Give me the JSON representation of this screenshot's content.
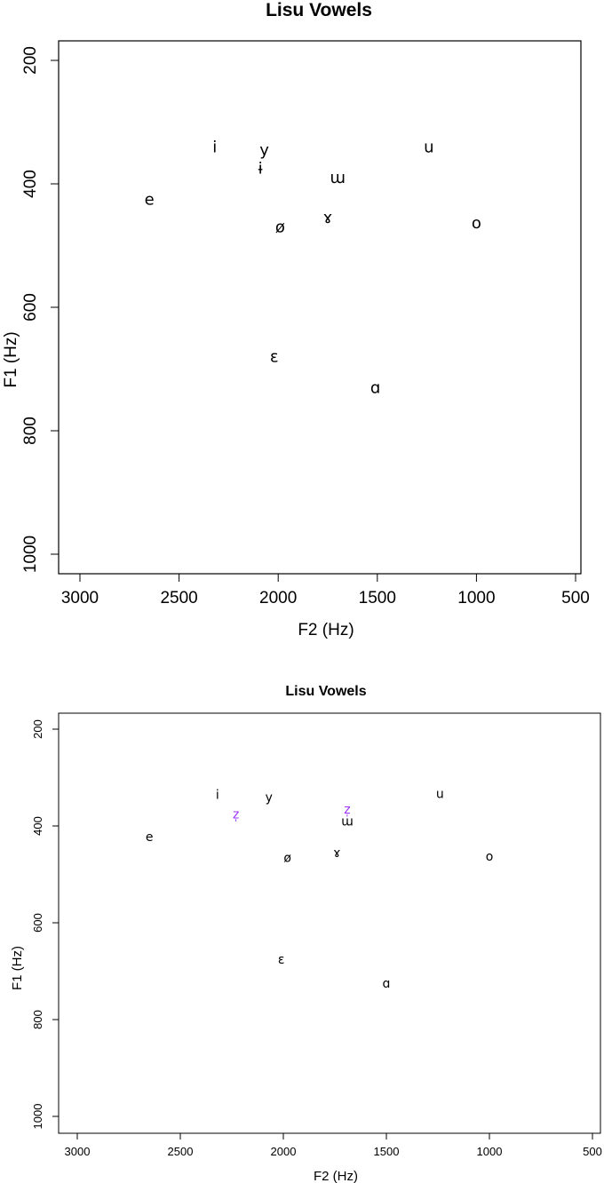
{
  "chart_data": [
    {
      "type": "scatter",
      "title": "Lisu Vowels",
      "xlabel": "F2 (Hz)",
      "ylabel": "F1 (Hz)",
      "xlim": [
        3000,
        500
      ],
      "ylim": [
        1000,
        200
      ],
      "x_reversed": true,
      "y_reversed": true,
      "xticks": [
        3000,
        2500,
        2000,
        1500,
        1000,
        500
      ],
      "yticks": [
        200,
        400,
        600,
        800,
        1000
      ],
      "grid": false,
      "points": [
        {
          "label": "i",
          "x": 2320,
          "y": 340,
          "color": "#000000"
        },
        {
          "label": "y",
          "x": 2070,
          "y": 345,
          "color": "#000000"
        },
        {
          "label": "ɨ",
          "x": 2090,
          "y": 375,
          "color": "#000000"
        },
        {
          "label": "u",
          "x": 1240,
          "y": 340,
          "color": "#000000"
        },
        {
          "label": "ɯ",
          "x": 1700,
          "y": 390,
          "color": "#000000"
        },
        {
          "label": "e",
          "x": 2650,
          "y": 425,
          "color": "#000000"
        },
        {
          "label": "ɤ",
          "x": 1750,
          "y": 455,
          "color": "#000000"
        },
        {
          "label": "ø",
          "x": 1990,
          "y": 470,
          "color": "#000000"
        },
        {
          "label": "o",
          "x": 1000,
          "y": 463,
          "color": "#000000"
        },
        {
          "label": "ɛ",
          "x": 2020,
          "y": 680,
          "color": "#000000"
        },
        {
          "label": "ɑ",
          "x": 1510,
          "y": 730,
          "color": "#000000"
        }
      ]
    },
    {
      "type": "scatter",
      "title": "Lisu Vowels",
      "xlabel": "F2 (Hz)",
      "ylabel": "F1 (Hz)",
      "xlim": [
        3000,
        500
      ],
      "ylim": [
        1000,
        200
      ],
      "x_reversed": true,
      "y_reversed": true,
      "xticks": [
        3000,
        2500,
        2000,
        1500,
        1000,
        500
      ],
      "yticks": [
        200,
        400,
        600,
        800,
        1000
      ],
      "grid": false,
      "points": [
        {
          "label": "i",
          "x": 2320,
          "y": 335,
          "color": "#000000"
        },
        {
          "label": "y",
          "x": 2070,
          "y": 340,
          "color": "#000000"
        },
        {
          "label": "u",
          "x": 1240,
          "y": 333,
          "color": "#000000"
        },
        {
          "label": "z̩",
          "x": 2230,
          "y": 375,
          "color": "#9b30ff"
        },
        {
          "label": "z̩",
          "x": 1690,
          "y": 365,
          "color": "#9b30ff"
        },
        {
          "label": "ɯ",
          "x": 1690,
          "y": 390,
          "color": "#000000"
        },
        {
          "label": "e",
          "x": 2650,
          "y": 422,
          "color": "#000000"
        },
        {
          "label": "ɤ",
          "x": 1740,
          "y": 455,
          "color": "#000000"
        },
        {
          "label": "ø",
          "x": 1980,
          "y": 465,
          "color": "#000000"
        },
        {
          "label": "o",
          "x": 1000,
          "y": 462,
          "color": "#000000"
        },
        {
          "label": "ɛ",
          "x": 2010,
          "y": 675,
          "color": "#000000"
        },
        {
          "label": "ɑ",
          "x": 1500,
          "y": 725,
          "color": "#000000"
        }
      ]
    }
  ]
}
